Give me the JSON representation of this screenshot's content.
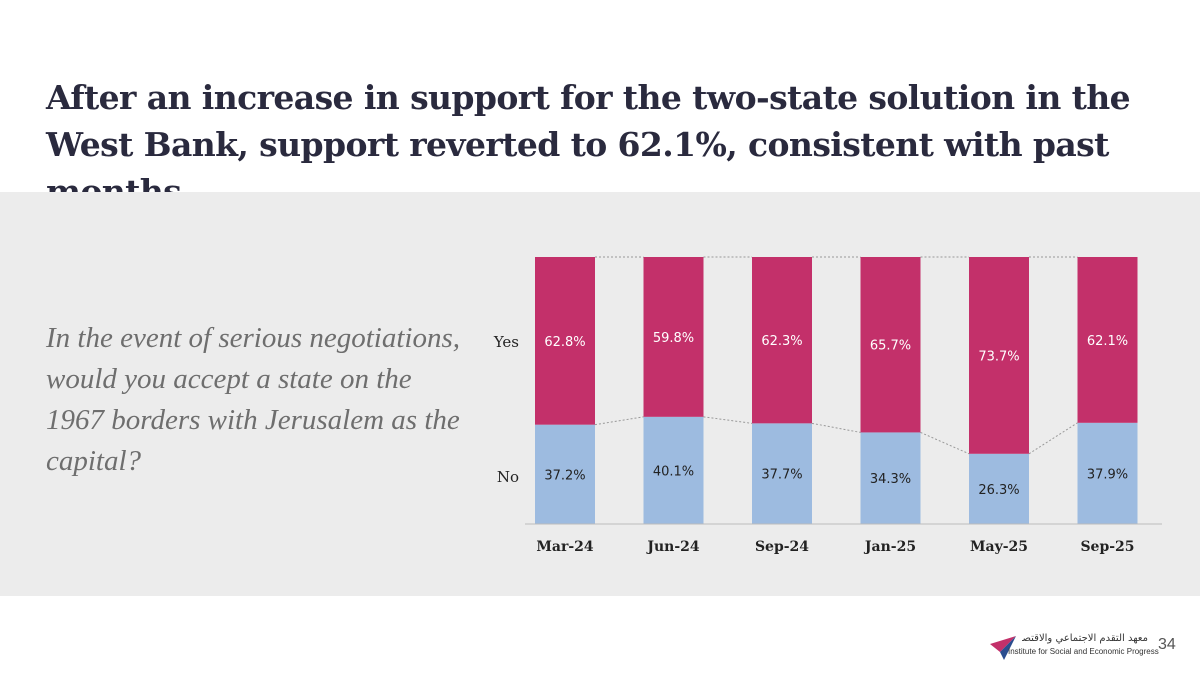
{
  "slide": {
    "title": "After an increase in support for the two-state solution in the West Bank, support reverted to 62.1%, consistent with past months",
    "question": "In the event of serious negotiations, would you accept a state on the 1967 borders with Jerusalem as the capital?",
    "page_number": "34"
  },
  "logo": {
    "arabic": "معهد التقدم الاجتماعي والاقتصادي",
    "english": "Institute for Social and Economic Progress"
  },
  "colors": {
    "yes": "#c3306a",
    "no": "#9dbbe0",
    "yes_text": "#ffffff",
    "no_text": "#222222",
    "connector": "#999999"
  },
  "chart_data": {
    "type": "bar",
    "stacked": true,
    "title": "",
    "xlabel": "",
    "ylabel": "",
    "ylim": [
      0,
      100
    ],
    "categories": [
      "Mar-24",
      "Jun-24",
      "Sep-24",
      "Jan-25",
      "May-25",
      "Sep-25"
    ],
    "series": [
      {
        "name": "No",
        "values": [
          37.2,
          40.1,
          37.7,
          34.3,
          26.3,
          37.9
        ],
        "labels": [
          "37.2%",
          "40.1%",
          "37.7%",
          "34.3%",
          "26.3%",
          "37.9%"
        ]
      },
      {
        "name": "Yes",
        "values": [
          62.8,
          59.8,
          62.3,
          65.7,
          73.7,
          62.1
        ],
        "labels": [
          "62.8%",
          "59.8%",
          "62.3%",
          "65.7%",
          "73.7%",
          "62.1%"
        ]
      }
    ],
    "legend": "row labels on left",
    "grid": false
  }
}
